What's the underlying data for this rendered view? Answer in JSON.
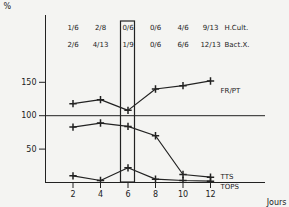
{
  "chart_data": {
    "type": "line",
    "y_label": "%",
    "x_label": "Jours",
    "x": [
      2,
      4,
      6,
      8,
      10,
      12
    ],
    "series": [
      {
        "name": "FR/PT",
        "color": "#222222",
        "marker": "plus",
        "values": [
          118,
          124,
          108,
          140,
          145,
          152
        ]
      },
      {
        "name": "TTS",
        "color": "#222222",
        "marker": "plus",
        "values": [
          83,
          89,
          84,
          70,
          12,
          8
        ]
      },
      {
        "name": "TOPS",
        "color": "#222222",
        "marker": "plus",
        "values": [
          10,
          3,
          22,
          5,
          3,
          2
        ]
      }
    ],
    "reference_line": 100,
    "highlight": 6,
    "annotations": [
      {
        "name": "H.Cult.",
        "values": [
          "1/6",
          "2/8",
          "0/6",
          "0/6",
          "4/6",
          "9/13"
        ]
      },
      {
        "name": "Bact.X.",
        "values": [
          "2/6",
          "4/13",
          "1/9",
          "0/6",
          "6/6",
          "12/13"
        ]
      }
    ],
    "xlim": [
      0,
      16
    ],
    "xticks": [
      2,
      4,
      6,
      8,
      10,
      12
    ],
    "ylim": [
      0,
      250
    ],
    "yticks": [
      50,
      100,
      150
    ],
    "grid": false
  }
}
